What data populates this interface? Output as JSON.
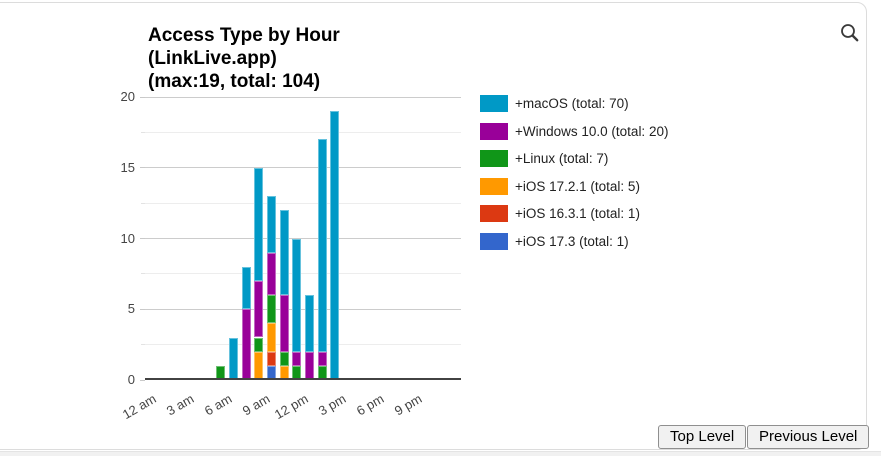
{
  "title": {
    "line1": "Access Type by Hour",
    "line2": "(LinkLive.app)",
    "line3": "(max:19, total: 104)"
  },
  "toolbar": {
    "search_icon": "magnifying-glass"
  },
  "chart_data": {
    "type": "bar",
    "stacked": true,
    "title": "Access Type by Hour (LinkLive.app) (max:19, total: 104)",
    "max_bar_total": 19,
    "grand_total": 104,
    "grid": true,
    "legend_position": "right",
    "x_axis": {
      "tick_hours": [
        0,
        3,
        6,
        9,
        12,
        15,
        18,
        21
      ],
      "tick_labels": [
        "12 am",
        "3 am",
        "6 am",
        "9 am",
        "12 pm",
        "3 pm",
        "6 pm",
        "9 pm"
      ],
      "range_hours": [
        0,
        25
      ]
    },
    "y_axis": {
      "ticks": [
        0,
        5,
        10,
        15,
        20
      ],
      "minor_ticks": [
        2.5,
        7.5,
        12.5,
        17.5
      ],
      "range": [
        0,
        20
      ]
    },
    "bar_hours": [
      6,
      7,
      8,
      9,
      10,
      11,
      12,
      13,
      14,
      15
    ],
    "bar_hour_labels": [
      "6 am",
      "7 am",
      "8 am",
      "9 am",
      "10 am",
      "11 am",
      "12 pm",
      "1 pm",
      "2 pm",
      "3 pm"
    ],
    "bar_totals": [
      1,
      3,
      8,
      15,
      13,
      12,
      10,
      6,
      17,
      19
    ],
    "series": [
      {
        "name": "+macOS",
        "legend_label": "+macOS (total: 70)",
        "total": 70,
        "color": "#0099c6",
        "values": [
          0,
          3,
          3,
          8,
          4,
          6,
          8,
          4,
          15,
          19
        ]
      },
      {
        "name": "+Windows 10.0",
        "legend_label": "+Windows 10.0 (total: 20)",
        "total": 20,
        "color": "#990099",
        "values": [
          0,
          0,
          5,
          4,
          3,
          4,
          1,
          2,
          1,
          0
        ]
      },
      {
        "name": "+Linux",
        "legend_label": "+Linux (total: 7)",
        "total": 7,
        "color": "#109618",
        "values": [
          1,
          0,
          0,
          1,
          2,
          1,
          1,
          0,
          1,
          0
        ]
      },
      {
        "name": "+iOS 17.2.1",
        "legend_label": "+iOS 17.2.1 (total: 5)",
        "total": 5,
        "color": "#ff9900",
        "values": [
          0,
          0,
          0,
          2,
          2,
          1,
          0,
          0,
          0,
          0
        ]
      },
      {
        "name": "+iOS 16.3.1",
        "legend_label": "+iOS 16.3.1 (total: 1)",
        "total": 1,
        "color": "#dc3912",
        "values": [
          0,
          0,
          0,
          0,
          1,
          0,
          0,
          0,
          0,
          0
        ]
      },
      {
        "name": "+iOS 17.3",
        "legend_label": "+iOS 17.3 (total: 1)",
        "total": 1,
        "color": "#3366cc",
        "values": [
          0,
          0,
          0,
          0,
          1,
          0,
          0,
          0,
          0,
          0
        ]
      }
    ],
    "stack_order_bottom_to_top": [
      "+iOS 17.3",
      "+iOS 16.3.1",
      "+iOS 17.2.1",
      "+Linux",
      "+Windows 10.0",
      "+macOS"
    ]
  },
  "footer": {
    "top_level_label": "Top Level",
    "previous_level_label": "Previous Level"
  }
}
